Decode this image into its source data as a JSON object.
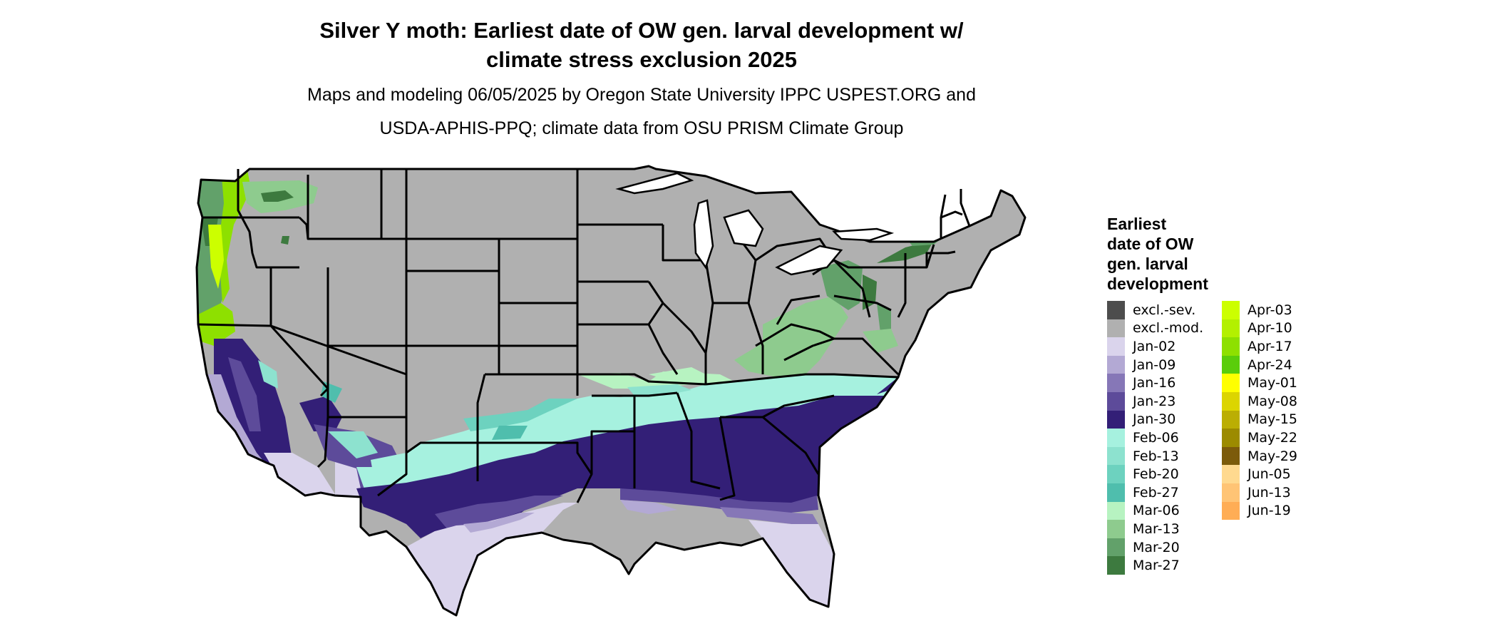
{
  "title": {
    "line1": "Silver Y moth: Earliest date of OW gen. larval development w/",
    "line2": "climate stress exclusion 2025"
  },
  "subtitle": {
    "line1": "Maps and modeling 06/05/2025 by Oregon State University IPPC USPEST.ORG and",
    "line2": "USDA-APHIS-PPQ; climate data from OSU PRISM Climate Group"
  },
  "legend": {
    "title_lines": [
      "Earliest",
      "date of OW",
      "gen. larval",
      "development"
    ],
    "columns": [
      [
        {
          "label": "excl.-sev.",
          "color": "#4d4d4d"
        },
        {
          "label": "excl.-mod.",
          "color": "#b0b0b0"
        },
        {
          "label": "Jan-02",
          "color": "#dad4ec"
        },
        {
          "label": "Jan-09",
          "color": "#b3a9d4"
        },
        {
          "label": "Jan-16",
          "color": "#8677b7"
        },
        {
          "label": "Jan-23",
          "color": "#5d4b9a"
        },
        {
          "label": "Jan-30",
          "color": "#331f77"
        },
        {
          "label": "Feb-06",
          "color": "#a6f1df"
        },
        {
          "label": "Feb-13",
          "color": "#8de2cf"
        },
        {
          "label": "Feb-20",
          "color": "#6dd2bf"
        },
        {
          "label": "Feb-27",
          "color": "#4fbead"
        },
        {
          "label": "Mar-06",
          "color": "#b7f3c1"
        },
        {
          "label": "Mar-13",
          "color": "#8ecb8e"
        },
        {
          "label": "Mar-20",
          "color": "#62a16a"
        },
        {
          "label": "Mar-27",
          "color": "#3d7a3f"
        }
      ],
      [
        {
          "label": "Apr-03",
          "color": "#ccff00"
        },
        {
          "label": "Apr-10",
          "color": "#b3f000"
        },
        {
          "label": "Apr-17",
          "color": "#8ee000"
        },
        {
          "label": "Apr-24",
          "color": "#5acd0b"
        },
        {
          "label": "May-01",
          "color": "#ffff00"
        },
        {
          "label": "May-08",
          "color": "#dcd500"
        },
        {
          "label": "May-15",
          "color": "#bbae03"
        },
        {
          "label": "May-22",
          "color": "#9c8b00"
        },
        {
          "label": "May-29",
          "color": "#7c5b0b"
        },
        {
          "label": "Jun-05",
          "color": "#ffd98f"
        },
        {
          "label": "Jun-13",
          "color": "#ffc475"
        },
        {
          "label": "Jun-19",
          "color": "#ffad55"
        }
      ]
    ]
  }
}
